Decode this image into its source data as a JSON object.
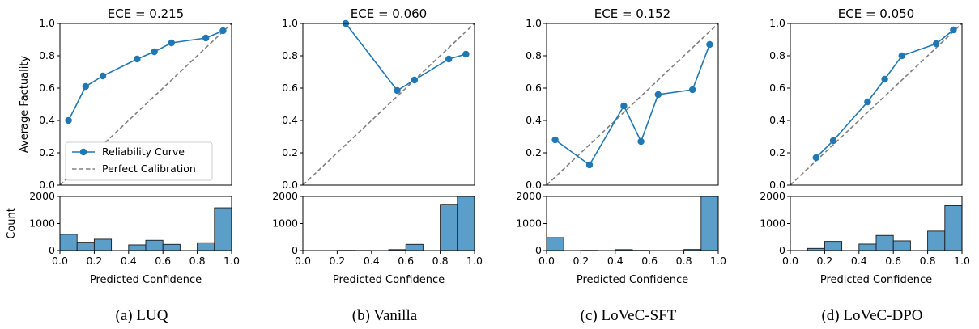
{
  "chart_data": [
    {
      "type": "line",
      "title": "ECE = 0.215",
      "caption": "(a) LUQ",
      "ylabel": "Average Factuality",
      "xlim": [
        0,
        1
      ],
      "ylim": [
        0,
        1
      ],
      "yticks": [
        "0.0",
        "0.2",
        "0.4",
        "0.6",
        "0.8",
        "1.0"
      ],
      "legend": {
        "position": "lower-right",
        "reliability": "Reliability Curve",
        "perfect": "Perfect Calibration"
      },
      "series": [
        {
          "name": "Reliability Curve",
          "x": [
            0.05,
            0.15,
            0.25,
            0.45,
            0.55,
            0.65,
            0.85,
            0.95
          ],
          "y": [
            0.4,
            0.61,
            0.675,
            0.78,
            0.825,
            0.88,
            0.91,
            0.955
          ]
        },
        {
          "name": "Perfect Calibration",
          "x": [
            0,
            1
          ],
          "y": [
            0,
            1
          ]
        }
      ],
      "histogram": {
        "type": "bar",
        "ylabel": "Count",
        "xlabel": "Predicted Confidence",
        "ylim": [
          0,
          2000
        ],
        "yticks": [
          "0",
          "1000",
          "2000"
        ],
        "xticks": [
          "0.0",
          "0.2",
          "0.4",
          "0.6",
          "0.8",
          "1.0"
        ],
        "bins": [
          0.0,
          0.1,
          0.2,
          0.3,
          0.4,
          0.5,
          0.6,
          0.7,
          0.8,
          0.9,
          1.0
        ],
        "counts": [
          600,
          310,
          420,
          0,
          210,
          380,
          230,
          0,
          290,
          1580
        ]
      }
    },
    {
      "type": "line",
      "title": "ECE = 0.060",
      "caption": "(b) Vanilla",
      "xlim": [
        0,
        1
      ],
      "ylim": [
        0,
        1
      ],
      "yticks": [
        "0.0",
        "0.2",
        "0.4",
        "0.6",
        "0.8",
        "1.0"
      ],
      "series": [
        {
          "name": "Reliability Curve",
          "x": [
            0.25,
            0.55,
            0.65,
            0.85,
            0.95
          ],
          "y": [
            1.0,
            0.585,
            0.65,
            0.78,
            0.81
          ]
        },
        {
          "name": "Perfect Calibration",
          "x": [
            0,
            1
          ],
          "y": [
            0,
            1
          ]
        }
      ],
      "histogram": {
        "type": "bar",
        "xlabel": "Predicted Confidence",
        "ylim": [
          0,
          2000
        ],
        "yticks": [
          "0",
          "1000",
          "2000"
        ],
        "xticks": [
          "0.0",
          "0.2",
          "0.4",
          "0.6",
          "0.8",
          "1.0"
        ],
        "bins": [
          0.0,
          0.1,
          0.2,
          0.3,
          0.4,
          0.5,
          0.6,
          0.7,
          0.8,
          0.9,
          1.0
        ],
        "counts": [
          0,
          0,
          8,
          5,
          0,
          35,
          230,
          0,
          1710,
          2000
        ]
      }
    },
    {
      "type": "line",
      "title": "ECE = 0.152",
      "caption": "(c) LoVeC-SFT",
      "xlim": [
        0,
        1
      ],
      "ylim": [
        0,
        1
      ],
      "yticks": [
        "0.0",
        "0.2",
        "0.4",
        "0.6",
        "0.8",
        "1.0"
      ],
      "series": [
        {
          "name": "Reliability Curve",
          "x": [
            0.05,
            0.25,
            0.45,
            0.55,
            0.65,
            0.85,
            0.95
          ],
          "y": [
            0.28,
            0.125,
            0.49,
            0.27,
            0.56,
            0.59,
            0.87
          ]
        },
        {
          "name": "Perfect Calibration",
          "x": [
            0,
            1
          ],
          "y": [
            0,
            1
          ]
        }
      ],
      "histogram": {
        "type": "bar",
        "xlabel": "Predicted Confidence",
        "ylim": [
          0,
          2000
        ],
        "yticks": [
          "0",
          "1000",
          "2000"
        ],
        "xticks": [
          "0.0",
          "0.2",
          "0.4",
          "0.6",
          "0.8",
          "1.0"
        ],
        "bins": [
          0.0,
          0.1,
          0.2,
          0.3,
          0.4,
          0.5,
          0.6,
          0.7,
          0.8,
          0.9,
          1.0
        ],
        "counts": [
          480,
          0,
          8,
          0,
          35,
          8,
          0,
          0,
          40,
          2000
        ]
      }
    },
    {
      "type": "line",
      "title": "ECE = 0.050",
      "caption": "(d) LoVeC-DPO",
      "xlim": [
        0,
        1
      ],
      "ylim": [
        0,
        1
      ],
      "yticks": [
        "0.0",
        "0.2",
        "0.4",
        "0.6",
        "0.8",
        "1.0"
      ],
      "series": [
        {
          "name": "Reliability Curve",
          "x": [
            0.15,
            0.25,
            0.45,
            0.55,
            0.65,
            0.85,
            0.95
          ],
          "y": [
            0.17,
            0.275,
            0.515,
            0.655,
            0.8,
            0.875,
            0.96
          ]
        },
        {
          "name": "Perfect Calibration",
          "x": [
            0,
            1
          ],
          "y": [
            0,
            1
          ]
        }
      ],
      "histogram": {
        "type": "bar",
        "xlabel": "Predicted Confidence",
        "ylim": [
          0,
          2000
        ],
        "yticks": [
          "0",
          "1000",
          "2000"
        ],
        "xticks": [
          "0.0",
          "0.2",
          "0.4",
          "0.6",
          "0.8",
          "1.0"
        ],
        "bins": [
          0.0,
          0.1,
          0.2,
          0.3,
          0.4,
          0.5,
          0.6,
          0.7,
          0.8,
          0.9,
          1.0
        ],
        "counts": [
          0,
          80,
          340,
          0,
          240,
          560,
          360,
          0,
          720,
          1660
        ]
      }
    }
  ],
  "colors": {
    "curve": "#1f77b4",
    "bar_fill": "#5b9ec9",
    "diagonal": "#808080"
  }
}
